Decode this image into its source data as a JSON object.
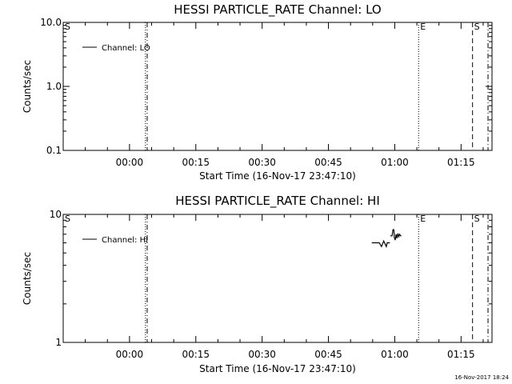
{
  "timestamp": "16-Nov-2017 18:24",
  "chart_data": [
    {
      "type": "line",
      "title": "HESSI PARTICLE_RATE Channel: LO",
      "xlabel": "Start Time (16-Nov-17 23:47:10)",
      "ylabel": "Counts/sec",
      "y_scale": "log",
      "ylim": [
        0.1,
        10.0
      ],
      "y_ticks": [
        {
          "value": 0.1,
          "label": "0.1"
        },
        {
          "value": 1.0,
          "label": "1.0"
        },
        {
          "value": 10.0,
          "label": "10.0"
        }
      ],
      "xlim_minutes": [
        -15,
        82
      ],
      "x_ticks": [
        {
          "value": 0,
          "label": "00:00"
        },
        {
          "value": 15,
          "label": "00:15"
        },
        {
          "value": 30,
          "label": "00:30"
        },
        {
          "value": 45,
          "label": "00:45"
        },
        {
          "value": 60,
          "label": "01:00"
        },
        {
          "value": 75,
          "label": "01:15"
        }
      ],
      "legend": {
        "entry": "Channel: LO",
        "placement": "top-left"
      },
      "series": [
        {
          "name": "Channel: LO",
          "x": [],
          "y": []
        }
      ],
      "markers": [
        {
          "x": -15,
          "style": "solid",
          "label": "S"
        },
        {
          "x": 3.6,
          "style": "dotted",
          "label": ""
        },
        {
          "x": 4.0,
          "style": "dashdot",
          "label": ""
        },
        {
          "x": 65.4,
          "style": "dotted",
          "label": "E"
        },
        {
          "x": 77.6,
          "style": "dashed",
          "label": "S"
        },
        {
          "x": 81.1,
          "style": "dashdot",
          "label": ""
        }
      ]
    },
    {
      "type": "line",
      "title": "HESSI PARTICLE_RATE Channel: HI",
      "xlabel": "Start Time (16-Nov-17 23:47:10)",
      "ylabel": "Counts/sec",
      "y_scale": "log",
      "ylim": [
        1,
        10
      ],
      "y_ticks": [
        {
          "value": 1,
          "label": "1"
        },
        {
          "value": 10,
          "label": "10"
        }
      ],
      "xlim_minutes": [
        -15,
        82
      ],
      "x_ticks": [
        {
          "value": 0,
          "label": "00:00"
        },
        {
          "value": 15,
          "label": "00:15"
        },
        {
          "value": 30,
          "label": "00:30"
        },
        {
          "value": 45,
          "label": "00:45"
        },
        {
          "value": 60,
          "label": "01:00"
        },
        {
          "value": 75,
          "label": "01:15"
        }
      ],
      "legend": {
        "entry": "Channel: HI",
        "placement": "top-left"
      },
      "series": [
        {
          "name": "Channel: HI",
          "x": [
            54.8,
            56.3,
            56.5,
            57.0,
            57.5,
            58.1,
            58.3,
            58.9
          ],
          "y": [
            6.0,
            6.0,
            6.0,
            5.6,
            6.2,
            5.6,
            6.0,
            6.0
          ]
        },
        {
          "name": "Channel: HI",
          "x": [
            59.0,
            59.4,
            59.6,
            59.8,
            59.9,
            60.1,
            60.3,
            60.5,
            60.7,
            60.9,
            61.1,
            61.3,
            61.5
          ],
          "y": [
            6.8,
            6.8,
            7.6,
            7.6,
            6.6,
            6.3,
            7.0,
            6.5,
            7.1,
            6.7,
            7.0,
            6.8,
            6.8
          ]
        }
      ],
      "markers": [
        {
          "x": -15,
          "style": "solid",
          "label": "S"
        },
        {
          "x": 3.6,
          "style": "dotted",
          "label": ""
        },
        {
          "x": 4.0,
          "style": "dashdot",
          "label": ""
        },
        {
          "x": 65.4,
          "style": "dotted",
          "label": "E"
        },
        {
          "x": 77.6,
          "style": "dashed",
          "label": "S"
        },
        {
          "x": 81.1,
          "style": "dashdot",
          "label": ""
        }
      ]
    }
  ]
}
